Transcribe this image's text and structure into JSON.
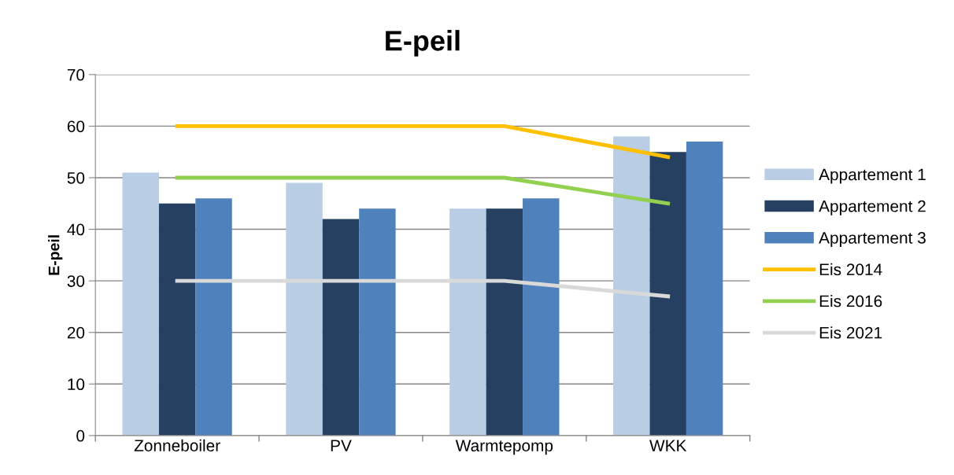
{
  "chart_data": {
    "type": "bar",
    "title": "E-peil",
    "ylabel": "E-peil",
    "categories": [
      "Zonneboiler",
      "PV",
      "Warmtepomp",
      "WKK"
    ],
    "series": [
      {
        "name": "Appartement 1",
        "color": "#b9cde5",
        "values": [
          51,
          49,
          44,
          58
        ]
      },
      {
        "name": "Appartement 2",
        "color": "#254061",
        "values": [
          45,
          42,
          44,
          55
        ]
      },
      {
        "name": "Appartement 3",
        "color": "#4f81bd",
        "values": [
          46,
          44,
          46,
          57
        ]
      },
      {
        "name": "Eis 2014",
        "type": "line",
        "color": "#ffc000",
        "values": [
          60,
          60,
          60,
          54
        ]
      },
      {
        "name": "Eis 2016",
        "type": "line",
        "color": "#92d050",
        "values": [
          50,
          50,
          50,
          45
        ]
      },
      {
        "name": "Eis 2021",
        "type": "line",
        "color": "#d9d9d9",
        "values": [
          30,
          30,
          30,
          27
        ]
      }
    ],
    "ylim": [
      0,
      70
    ],
    "yticks": [
      0,
      10,
      20,
      30,
      40,
      50,
      60,
      70
    ],
    "grid": "y",
    "legend": "right",
    "marker": "none",
    "line_style": "solid"
  }
}
